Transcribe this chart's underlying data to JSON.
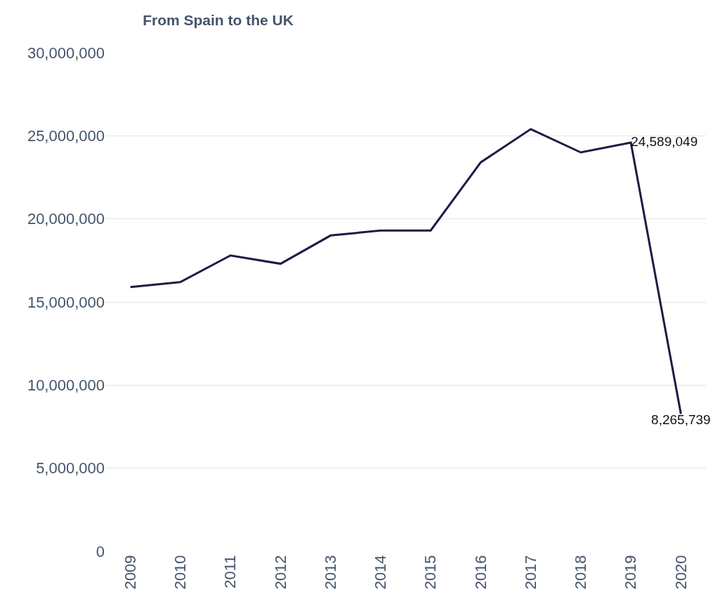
{
  "chart_data": {
    "type": "line",
    "title": "From Spain to the UK",
    "categories": [
      "2009",
      "2010",
      "2011",
      "2012",
      "2013",
      "2014",
      "2015",
      "2016",
      "2017",
      "2018",
      "2019",
      "2020"
    ],
    "series": [
      {
        "color": "#1e1a45",
        "values": [
          15900000,
          16200000,
          17800000,
          17300000,
          19000000,
          19300000,
          19300000,
          23400000,
          25400000,
          24000000,
          24589049,
          8265739
        ],
        "value_labels": [
          null,
          null,
          null,
          null,
          null,
          null,
          null,
          null,
          null,
          null,
          "24,589,049",
          "8,265,739"
        ]
      }
    ],
    "ylim": [
      0,
      30000000
    ],
    "yticks": [
      {
        "value": 0,
        "label": "0"
      },
      {
        "value": 5000000,
        "label": "5,000,000"
      },
      {
        "value": 10000000,
        "label": "10,000,000"
      },
      {
        "value": 15000000,
        "label": "15,000,000"
      },
      {
        "value": 20000000,
        "label": "20,000,000"
      },
      {
        "value": 25000000,
        "label": "25,000,000"
      },
      {
        "value": 30000000,
        "label": "30,000,000"
      }
    ],
    "grid": "y",
    "marker": "none",
    "line_style": "solid"
  }
}
